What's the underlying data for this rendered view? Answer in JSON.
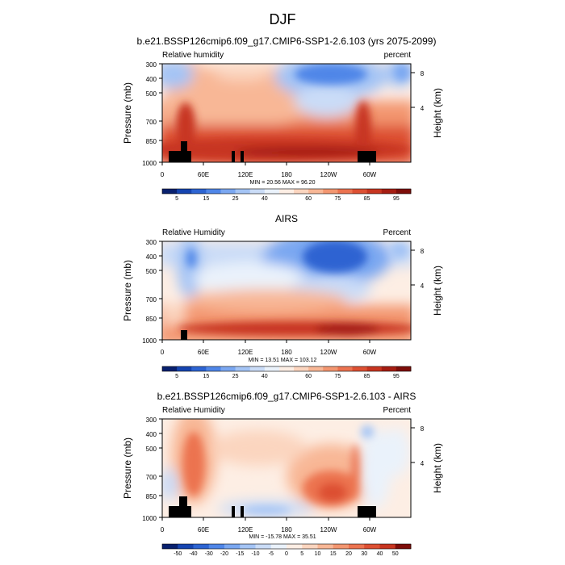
{
  "figure": {
    "season": "DJF"
  },
  "chart_data": [
    {
      "type": "heatmap",
      "title": "b.e21.BSSP126cmip6.f09_g17.CMIP6-SSP1-2.6.103 (yrs 2075-2099)",
      "variable_label": "Relative humidity",
      "units_label": "percent",
      "ylabel": "Pressure (mb)",
      "ylabel_right": "Height (km)",
      "x_ticks": [
        "0",
        "60E",
        "120E",
        "180",
        "120W",
        "60W"
      ],
      "y_ticks": [
        "300",
        "400",
        "500",
        "700",
        "850",
        "1000"
      ],
      "right_ticks": [
        "8",
        "4"
      ],
      "stats": "MIN = 20.56  MAX = 96.20",
      "colorbar_labels": [
        "5",
        "15",
        "25",
        "40",
        "60",
        "75",
        "85",
        "95"
      ],
      "colorbar_colors": [
        "#08206e",
        "#1544b0",
        "#2d64d2",
        "#4f86e8",
        "#7aa7f1",
        "#a4c4f5",
        "#cadcf7",
        "#eaf2fb",
        "#fdeee4",
        "#fbd5bf",
        "#f8b796",
        "#f39670",
        "#ec7350",
        "#dd5033",
        "#c73520",
        "#a51d12",
        "#7d0d09"
      ],
      "min": 20.56,
      "max": 96.2
    },
    {
      "type": "heatmap",
      "title": "AIRS",
      "variable_label": "Relative Humidity",
      "units_label": "Percent",
      "ylabel": "Pressure (mb)",
      "ylabel_right": "Height (km)",
      "x_ticks": [
        "0",
        "60E",
        "120E",
        "180",
        "120W",
        "60W"
      ],
      "y_ticks": [
        "300",
        "400",
        "500",
        "700",
        "850",
        "1000"
      ],
      "right_ticks": [
        "8",
        "4"
      ],
      "stats": "MIN = 13.51  MAX = 103.12",
      "colorbar_labels": [
        "5",
        "15",
        "25",
        "40",
        "60",
        "75",
        "85",
        "95"
      ],
      "colorbar_colors": [
        "#08206e",
        "#1544b0",
        "#2d64d2",
        "#4f86e8",
        "#7aa7f1",
        "#a4c4f5",
        "#cadcf7",
        "#eaf2fb",
        "#fdeee4",
        "#fbd5bf",
        "#f8b796",
        "#f39670",
        "#ec7350",
        "#dd5033",
        "#c73520",
        "#a51d12",
        "#7d0d09"
      ],
      "min": 13.51,
      "max": 103.12
    },
    {
      "type": "heatmap",
      "title": "b.e21.BSSP126cmip6.f09_g17.CMIP6-SSP1-2.6.103 - AIRS",
      "variable_label": "Relative Humidity",
      "units_label": "Percent",
      "ylabel": "Pressure (mb)",
      "ylabel_right": "Height (km)",
      "x_ticks": [
        "0",
        "60E",
        "120E",
        "180",
        "120W",
        "60W"
      ],
      "y_ticks": [
        "300",
        "400",
        "500",
        "700",
        "850",
        "1000"
      ],
      "right_ticks": [
        "8",
        "4"
      ],
      "stats": "MIN = -15.78  MAX = 35.51",
      "colorbar_labels": [
        "-50",
        "-40",
        "-30",
        "-20",
        "-15",
        "-10",
        "-5",
        "0",
        "5",
        "10",
        "15",
        "20",
        "30",
        "40",
        "50"
      ],
      "colorbar_colors": [
        "#08206e",
        "#1544b0",
        "#2d64d2",
        "#4f86e8",
        "#7aa7f1",
        "#a4c4f5",
        "#cadcf7",
        "#eaf2fb",
        "#fdeee4",
        "#fbd5bf",
        "#f8b796",
        "#f39670",
        "#ec7350",
        "#dd5033",
        "#c73520",
        "#7d0d09"
      ],
      "min": -15.78,
      "max": 35.51
    }
  ]
}
